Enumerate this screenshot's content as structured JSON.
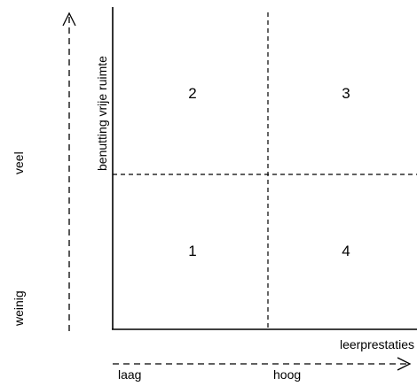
{
  "diagram": {
    "y_axis_title": "benutting vrije ruimte",
    "x_axis_title": "leerprestaties",
    "y_high": "veel",
    "y_low": "weinig",
    "x_low": "laag",
    "x_high": "hoog",
    "quadrants": {
      "top_left": "2",
      "top_right": "3",
      "bottom_left": "1",
      "bottom_right": "4"
    },
    "colors": {
      "line": "#000000",
      "background": "#ffffff"
    }
  }
}
